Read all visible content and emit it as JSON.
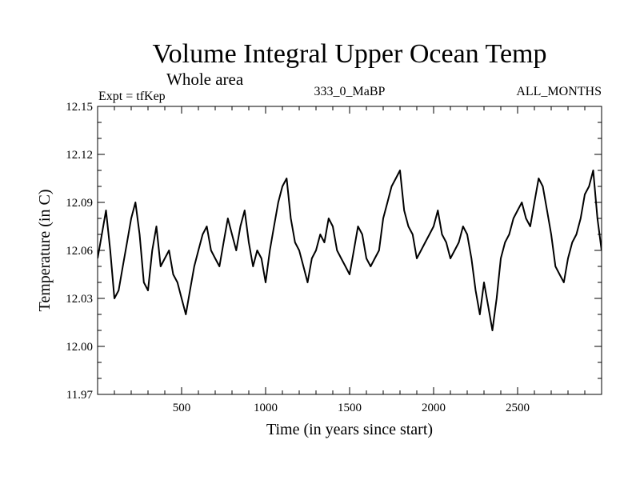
{
  "chart_data": {
    "type": "line",
    "title": "Volume Integral Upper Ocean Temp",
    "subtitle": "Whole area",
    "header_left": "Expt = tfKep",
    "header_center": "333_0_MaBP",
    "header_right": "ALL_MONTHS",
    "xlabel": "Time (in years since start)",
    "ylabel": "Temperature (in C)",
    "xlim": [
      0,
      3000
    ],
    "ylim": [
      11.97,
      12.15
    ],
    "xticks": [
      500,
      1000,
      1500,
      2000,
      2500
    ],
    "xtick_labels": [
      "500",
      "1000",
      "1500",
      "2000",
      "2500"
    ],
    "yticks": [
      11.97,
      12.0,
      12.03,
      12.06,
      12.09,
      12.12,
      12.15
    ],
    "ytick_labels": [
      "11.97",
      "12.00",
      "12.03",
      "12.06",
      "12.09",
      "12.12",
      "12.15"
    ],
    "line_color": "#000000",
    "x": [
      0,
      25,
      50,
      75,
      100,
      125,
      150,
      175,
      200,
      225,
      250,
      275,
      300,
      325,
      350,
      375,
      400,
      425,
      450,
      475,
      500,
      525,
      550,
      575,
      600,
      625,
      650,
      675,
      700,
      725,
      750,
      775,
      800,
      825,
      850,
      875,
      900,
      925,
      950,
      975,
      1000,
      1025,
      1050,
      1075,
      1100,
      1125,
      1150,
      1175,
      1200,
      1225,
      1250,
      1275,
      1300,
      1325,
      1350,
      1375,
      1400,
      1425,
      1450,
      1475,
      1500,
      1525,
      1550,
      1575,
      1600,
      1625,
      1650,
      1675,
      1700,
      1725,
      1750,
      1775,
      1800,
      1825,
      1850,
      1875,
      1900,
      1925,
      1950,
      1975,
      2000,
      2025,
      2050,
      2075,
      2100,
      2125,
      2150,
      2175,
      2200,
      2225,
      2250,
      2275,
      2300,
      2325,
      2350,
      2375,
      2400,
      2425,
      2450,
      2475,
      2500,
      2525,
      2550,
      2575,
      2600,
      2625,
      2650,
      2675,
      2700,
      2725,
      2750,
      2775,
      2800,
      2825,
      2850,
      2875,
      2900,
      2925,
      2950,
      2975,
      3000
    ],
    "values": [
      12.055,
      12.07,
      12.085,
      12.06,
      12.03,
      12.035,
      12.05,
      12.065,
      12.08,
      12.09,
      12.07,
      12.04,
      12.035,
      12.06,
      12.075,
      12.05,
      12.055,
      12.06,
      12.045,
      12.04,
      12.03,
      12.02,
      12.035,
      12.05,
      12.06,
      12.07,
      12.075,
      12.06,
      12.055,
      12.05,
      12.065,
      12.08,
      12.07,
      12.06,
      12.075,
      12.085,
      12.065,
      12.05,
      12.06,
      12.055,
      12.04,
      12.06,
      12.075,
      12.09,
      12.1,
      12.105,
      12.08,
      12.065,
      12.06,
      12.05,
      12.04,
      12.055,
      12.06,
      12.07,
      12.065,
      12.08,
      12.075,
      12.06,
      12.055,
      12.05,
      12.045,
      12.06,
      12.075,
      12.07,
      12.055,
      12.05,
      12.055,
      12.06,
      12.08,
      12.09,
      12.1,
      12.105,
      12.11,
      12.085,
      12.075,
      12.07,
      12.055,
      12.06,
      12.065,
      12.07,
      12.075,
      12.085,
      12.07,
      12.065,
      12.055,
      12.06,
      12.065,
      12.075,
      12.07,
      12.055,
      12.035,
      12.02,
      12.04,
      12.025,
      12.01,
      12.03,
      12.055,
      12.065,
      12.07,
      12.08,
      12.085,
      12.09,
      12.08,
      12.075,
      12.09,
      12.105,
      12.1,
      12.085,
      12.07,
      12.05,
      12.045,
      12.04,
      12.055,
      12.065,
      12.07,
      12.08,
      12.095,
      12.1,
      12.11,
      12.08,
      12.06
    ]
  }
}
